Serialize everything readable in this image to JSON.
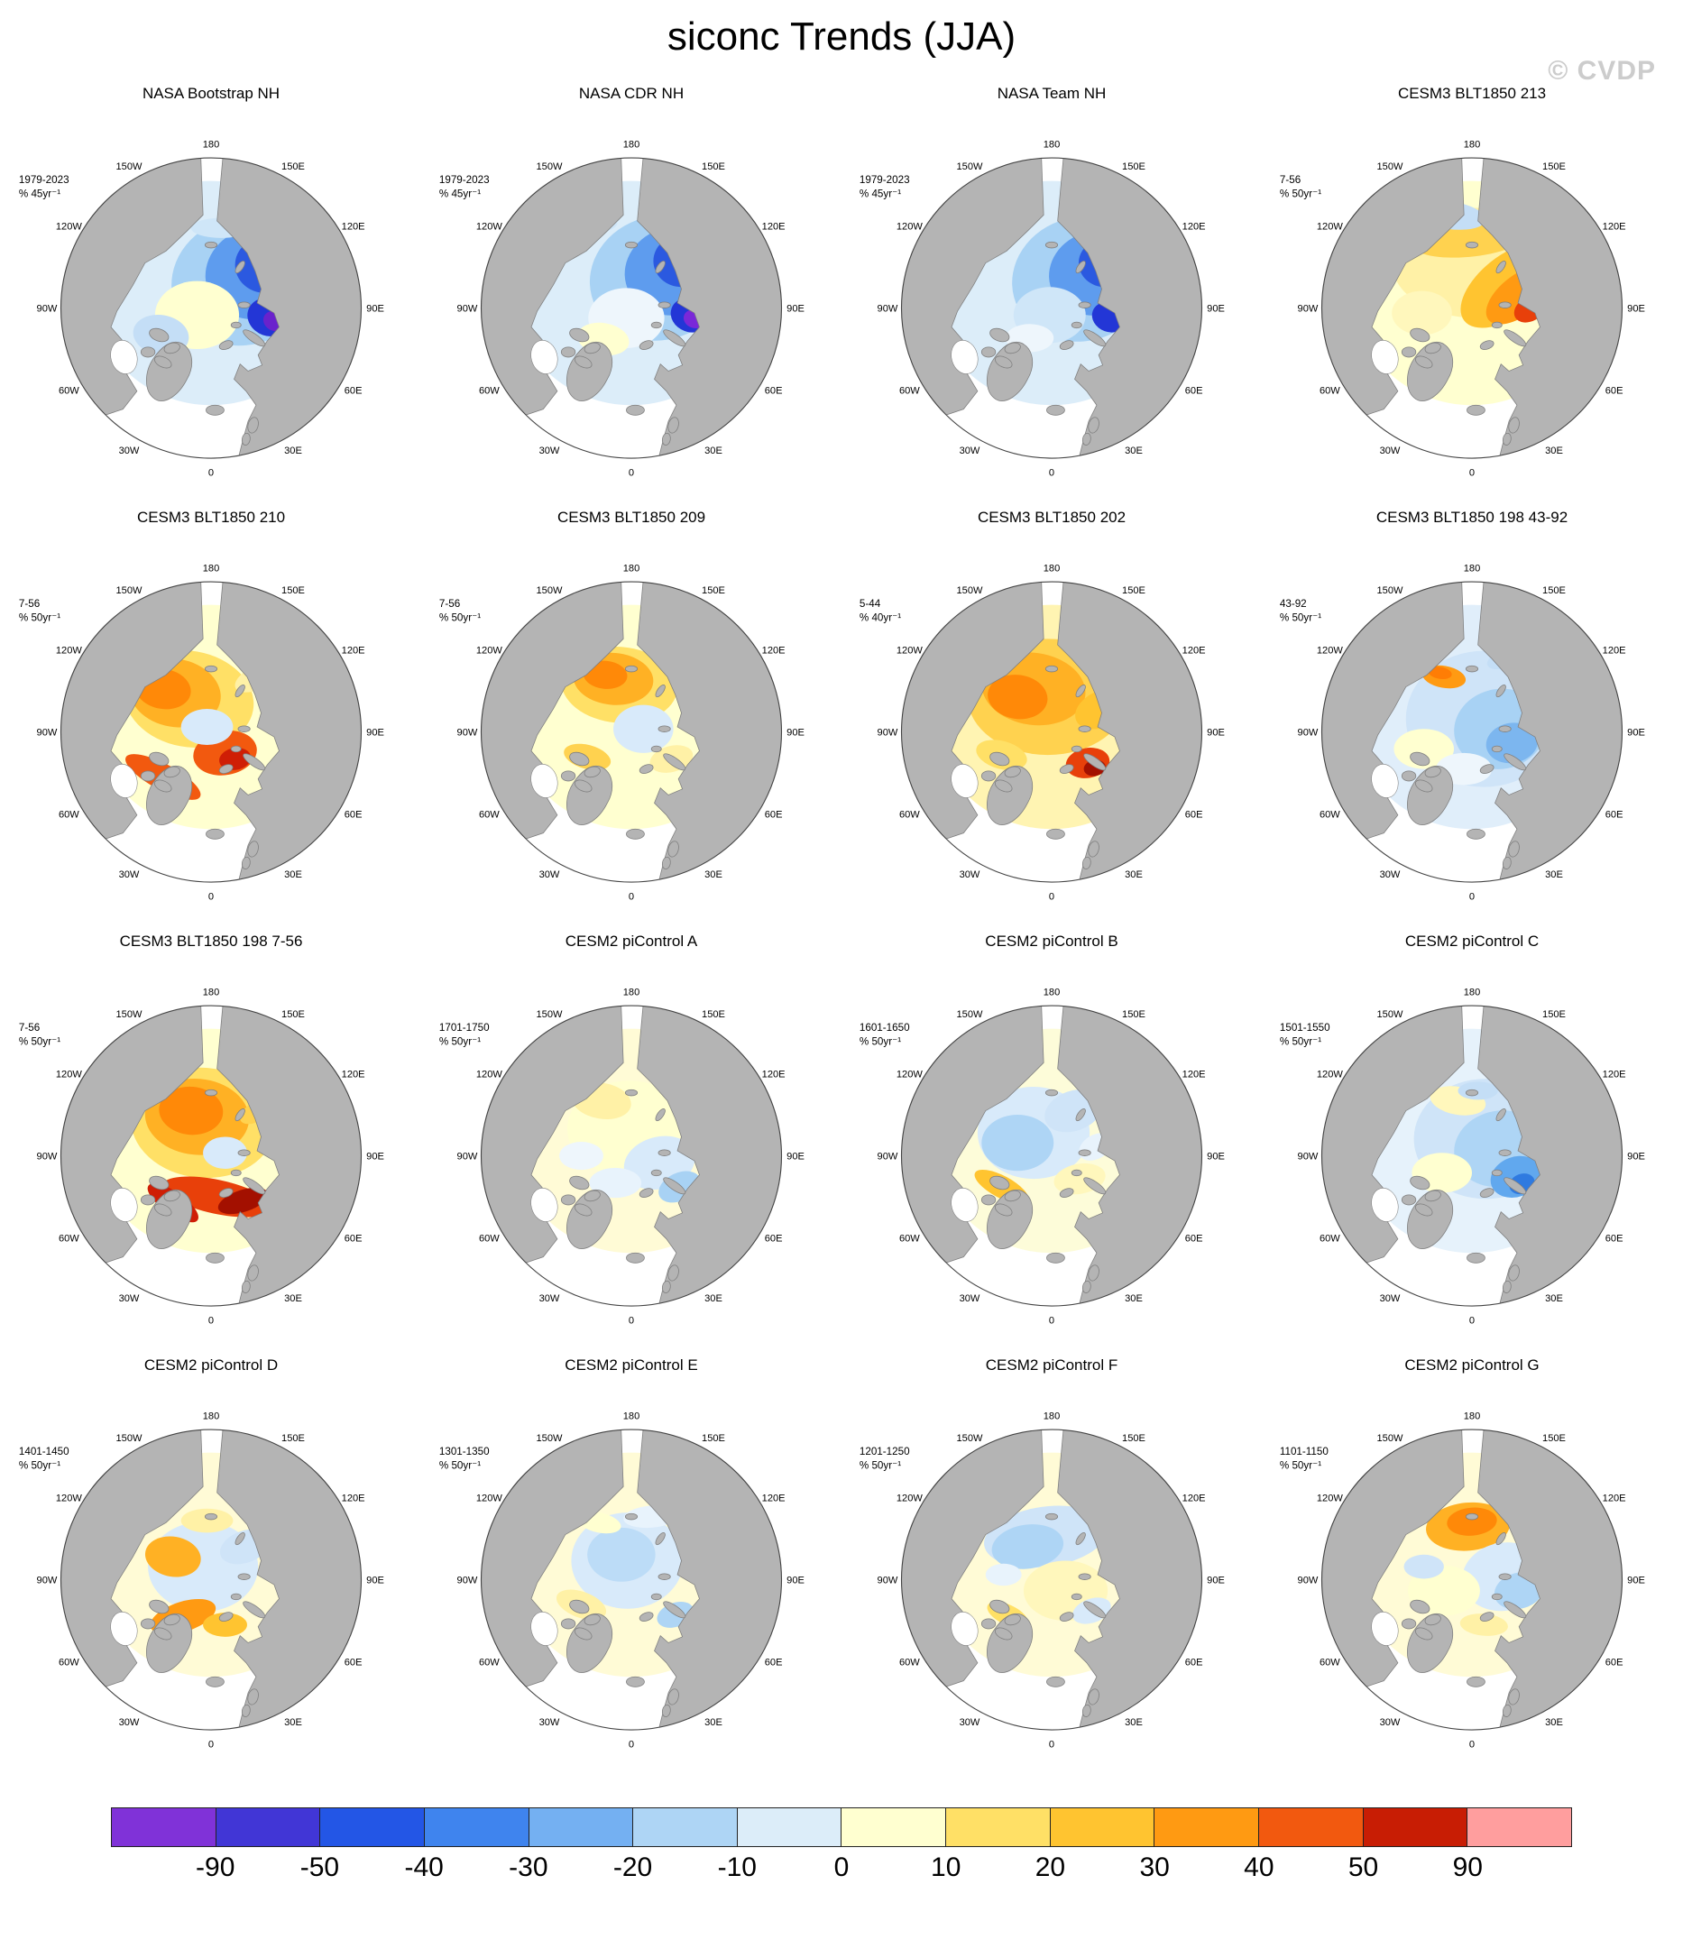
{
  "title": "siconc Trends (JJA)",
  "watermark": "© CVDP",
  "map_labels": [
    "180",
    "150E",
    "120E",
    "90E",
    "60E",
    "30E",
    "0",
    "30W",
    "60W",
    "90W",
    "120W",
    "150W"
  ],
  "chart_data": {
    "type": "heatmap",
    "title": "siconc Trends (JJA)",
    "variable": "sea ice concentration (siconc) trend",
    "season": "JJA",
    "projection": "North polar stereographic, 180 at top, 0 at bottom",
    "colorbar": {
      "units": "% per trend period",
      "levels": [
        -90,
        -50,
        -40,
        -30,
        -20,
        -10,
        0,
        10,
        20,
        30,
        40,
        50,
        90
      ],
      "colors": [
        "#8032d8",
        "#4136d6",
        "#2356e6",
        "#3f84ee",
        "#74b0f2",
        "#aed5f5",
        "#dcedf9",
        "#ffffd0",
        "#ffe066",
        "#ffc430",
        "#ff9a12",
        "#f2590f",
        "#c81d04",
        "#ff9e9e"
      ]
    },
    "panels": [
      {
        "name": "NASA Bootstrap NH",
        "period": "1979-2023",
        "units": "% 45yr⁻¹",
        "summary": "Strong negative trends (-30 to -90%) over the Siberian shelf seas and central Arctic"
      },
      {
        "name": "NASA CDR NH",
        "period": "1979-2023",
        "units": "% 45yr⁻¹",
        "summary": "Strong negative trends similar to Bootstrap, darkest over Kara and East Siberian seas"
      },
      {
        "name": "NASA Team NH",
        "period": "1979-2023",
        "units": "% 45yr⁻¹",
        "summary": "Widespread negative trends, strongest on the Siberian side of the Arctic"
      },
      {
        "name": "CESM3 BLT1850 213",
        "period": "7-56",
        "units": "% 50yr⁻¹",
        "summary": "Mostly weak positive trends with an orange band along the Siberian coast"
      },
      {
        "name": "CESM3 BLT1850 210",
        "period": "7-56",
        "units": "% 50yr⁻¹",
        "summary": "Positive trends with strong increases (30-50%) toward the Canadian side and pole"
      },
      {
        "name": "CESM3 BLT1850 209",
        "period": "7-56",
        "units": "% 50yr⁻¹",
        "summary": "Weak-to-moderate positive trends, orange patch on the Pacific side"
      },
      {
        "name": "CESM3 BLT1850 202",
        "period": "5-44",
        "units": "% 40yr⁻¹",
        "summary": "Moderate positive trends with a dark red maximum in the Kara sector"
      },
      {
        "name": "CESM3 BLT1850 198 43-92",
        "period": "43-92",
        "units": "% 50yr⁻¹",
        "summary": "Mostly weak negative trends with a small orange patch near the pole"
      },
      {
        "name": "CESM3 BLT1850 198 7-56",
        "period": "7-56",
        "units": "% 50yr⁻¹",
        "summary": "Strong positive trends, dark red maxima in the Barents/Kara sector"
      },
      {
        "name": "CESM2 piControl A",
        "period": "1701-1750",
        "units": "% 50yr⁻¹",
        "summary": "Weak mixed trends, pale yellow center with light blue margins"
      },
      {
        "name": "CESM2 piControl B",
        "period": "1601-1650",
        "units": "% 50yr⁻¹",
        "summary": "Weak negative trends on the North American side, weak positive elsewhere"
      },
      {
        "name": "CESM2 piControl C",
        "period": "1501-1550",
        "units": "% 50yr⁻¹",
        "summary": "Weak negative trends with a blue maximum in the Laptev/Kara sector"
      },
      {
        "name": "CESM2 piControl D",
        "period": "1401-1450",
        "units": "% 50yr⁻¹",
        "summary": "Mixed trends, orange patches near the Canadian Archipelago and Greenland"
      },
      {
        "name": "CESM2 piControl E",
        "period": "1301-1350",
        "units": "% 50yr⁻¹",
        "summary": "Weak trends, light blue central Arctic"
      },
      {
        "name": "CESM2 piControl F",
        "period": "1201-1250",
        "units": "% 50yr⁻¹",
        "summary": "Weak trends, light blue on the Pacific side of the pole"
      },
      {
        "name": "CESM2 piControl G",
        "period": "1101-1150",
        "units": "% 50yr⁻¹",
        "summary": "Weak mixed trends with an orange patch on the Siberian side near the pole"
      }
    ]
  },
  "panel_patterns": [
    [
      [
        200,
        190,
        118,
        112,
        0,
        "#dcedf9"
      ],
      [
        232,
        178,
        72,
        64,
        -15,
        "#a8d2f4"
      ],
      [
        246,
        170,
        52,
        46,
        -15,
        "#5e9cee"
      ],
      [
        254,
        162,
        30,
        28,
        0,
        "#2b59e0"
      ],
      [
        258,
        214,
        22,
        19,
        20,
        "#2336d6"
      ],
      [
        264,
        218,
        12,
        10,
        20,
        "#6a22cc"
      ],
      [
        186,
        212,
        42,
        34,
        0,
        "#ffffd0"
      ],
      [
        150,
        232,
        28,
        20,
        10,
        "#c4def6"
      ],
      [
        210,
        125,
        30,
        10,
        0,
        "#cfe6f8"
      ]
    ],
    [
      [
        200,
        190,
        118,
        112,
        0,
        "#dcedf9"
      ],
      [
        228,
        175,
        70,
        62,
        -15,
        "#a8d2f4"
      ],
      [
        243,
        168,
        50,
        44,
        -15,
        "#5e9cee"
      ],
      [
        250,
        158,
        28,
        26,
        0,
        "#2b59e0"
      ],
      [
        259,
        212,
        20,
        17,
        20,
        "#2336d6"
      ],
      [
        263,
        216,
        11,
        9,
        20,
        "#7a28d8"
      ],
      [
        195,
        215,
        38,
        30,
        0,
        "#eef6fc"
      ],
      [
        172,
        236,
        26,
        16,
        10,
        "#ffffd0"
      ],
      [
        160,
        120,
        26,
        10,
        0,
        "#cfe6f8"
      ]
    ],
    [
      [
        200,
        190,
        118,
        112,
        0,
        "#dcedf9"
      ],
      [
        230,
        176,
        70,
        62,
        -15,
        "#a8d2f4"
      ],
      [
        245,
        170,
        48,
        42,
        -15,
        "#5e9cee"
      ],
      [
        253,
        160,
        26,
        24,
        0,
        "#2b59e0"
      ],
      [
        258,
        214,
        18,
        15,
        20,
        "#2336d6"
      ],
      [
        198,
        212,
        36,
        28,
        0,
        "#cfe6f8"
      ],
      [
        178,
        235,
        24,
        14,
        0,
        "#eef6fc"
      ]
    ],
    [
      [
        200,
        190,
        118,
        112,
        0,
        "#ffffd0"
      ],
      [
        205,
        160,
        85,
        55,
        0,
        "#fff1a6"
      ],
      [
        238,
        182,
        58,
        30,
        -38,
        "#ffc430"
      ],
      [
        248,
        192,
        40,
        20,
        -38,
        "#ff9a12"
      ],
      [
        258,
        206,
        17,
        12,
        -30,
        "#e8400a"
      ],
      [
        196,
        138,
        55,
        16,
        -5,
        "#ffd24f"
      ],
      [
        176,
        112,
        38,
        14,
        8,
        "#c4def6"
      ],
      [
        248,
        122,
        28,
        12,
        -20,
        "#dcedf9"
      ],
      [
        150,
        210,
        30,
        22,
        0,
        "#fff7bc"
      ]
    ],
    [
      [
        200,
        190,
        118,
        112,
        0,
        "#ffffd0"
      ],
      [
        178,
        172,
        65,
        48,
        10,
        "#ffe066"
      ],
      [
        164,
        166,
        46,
        34,
        10,
        "#ffb124"
      ],
      [
        152,
        162,
        28,
        20,
        10,
        "#ff8908"
      ],
      [
        214,
        226,
        32,
        22,
        -10,
        "#f2590f"
      ],
      [
        224,
        232,
        16,
        11,
        -10,
        "#cf1e05"
      ],
      [
        152,
        250,
        42,
        13,
        28,
        "#f2590f"
      ],
      [
        196,
        200,
        26,
        18,
        0,
        "#d8eafa"
      ],
      [
        248,
        150,
        26,
        12,
        -25,
        "#fff1a6"
      ]
    ],
    [
      [
        200,
        190,
        118,
        112,
        0,
        "#ffffd0"
      ],
      [
        188,
        158,
        58,
        38,
        5,
        "#ffe066"
      ],
      [
        182,
        152,
        40,
        26,
        5,
        "#ffb124"
      ],
      [
        174,
        148,
        22,
        14,
        5,
        "#ff8908"
      ],
      [
        212,
        202,
        30,
        24,
        0,
        "#d8eafa"
      ],
      [
        240,
        232,
        22,
        13,
        -15,
        "#fff1a6"
      ],
      [
        156,
        230,
        24,
        12,
        15,
        "#ffd24f"
      ]
    ],
    [
      [
        200,
        190,
        118,
        112,
        0,
        "#fff4b2"
      ],
      [
        196,
        170,
        80,
        58,
        0,
        "#ffd24f"
      ],
      [
        182,
        162,
        52,
        36,
        8,
        "#ffb124"
      ],
      [
        166,
        170,
        30,
        22,
        8,
        "#ff8908"
      ],
      [
        236,
        236,
        22,
        15,
        -10,
        "#e8400a"
      ],
      [
        243,
        241,
        11,
        8,
        -10,
        "#a31000"
      ],
      [
        250,
        182,
        28,
        18,
        -25,
        "#ffc430"
      ],
      [
        150,
        228,
        26,
        14,
        15,
        "#ffe066"
      ]
    ],
    [
      [
        200,
        190,
        118,
        112,
        0,
        "#e0eefa"
      ],
      [
        212,
        192,
        78,
        68,
        0,
        "#cfe4f8"
      ],
      [
        228,
        202,
        46,
        40,
        -10,
        "#a8d2f4"
      ],
      [
        240,
        216,
        26,
        20,
        -10,
        "#7cb6ef"
      ],
      [
        172,
        150,
        22,
        11,
        10,
        "#ff9a12"
      ],
      [
        168,
        146,
        12,
        6,
        10,
        "#ff7d05"
      ],
      [
        152,
        222,
        30,
        20,
        0,
        "#ffffd0"
      ],
      [
        192,
        242,
        28,
        16,
        0,
        "#eef6fc"
      ],
      [
        238,
        130,
        24,
        10,
        -20,
        "#c4def6"
      ]
    ],
    [
      [
        200,
        190,
        118,
        112,
        0,
        "#ffffd0"
      ],
      [
        192,
        172,
        72,
        55,
        5,
        "#ffe066"
      ],
      [
        186,
        166,
        52,
        38,
        5,
        "#ffb124"
      ],
      [
        180,
        160,
        32,
        24,
        5,
        "#ff8908"
      ],
      [
        206,
        246,
        56,
        17,
        12,
        "#e8400a"
      ],
      [
        232,
        250,
        26,
        11,
        -18,
        "#a31000"
      ],
      [
        162,
        252,
        30,
        11,
        35,
        "#cf1e05"
      ],
      [
        214,
        202,
        22,
        16,
        0,
        "#d8eafa"
      ],
      [
        247,
        160,
        20,
        10,
        -30,
        "#ffd24f"
      ]
    ],
    [
      [
        200,
        190,
        118,
        112,
        0,
        "#fffbd6"
      ],
      [
        198,
        178,
        62,
        48,
        0,
        "#ffffd0"
      ],
      [
        228,
        212,
        36,
        26,
        -15,
        "#d8eafa"
      ],
      [
        248,
        236,
        22,
        14,
        -25,
        "#a8d2f4"
      ],
      [
        170,
        150,
        30,
        18,
        10,
        "#fff1a6"
      ],
      [
        184,
        232,
        26,
        15,
        0,
        "#e8f3fc"
      ],
      [
        150,
        205,
        22,
        14,
        0,
        "#eef6fc"
      ]
    ],
    [
      [
        200,
        190,
        118,
        112,
        0,
        "#fdfcd9"
      ],
      [
        182,
        182,
        56,
        46,
        0,
        "#d8eafa"
      ],
      [
        166,
        192,
        36,
        28,
        0,
        "#aed5f5"
      ],
      [
        222,
        160,
        30,
        20,
        -20,
        "#cfe4f8"
      ],
      [
        150,
        236,
        30,
        11,
        28,
        "#ffc430"
      ],
      [
        228,
        228,
        26,
        15,
        -10,
        "#fff7bc"
      ],
      [
        244,
        196,
        18,
        12,
        -30,
        "#e8f3fc"
      ]
    ],
    [
      [
        200,
        190,
        118,
        112,
        0,
        "#e6f2fb"
      ],
      [
        214,
        188,
        72,
        60,
        0,
        "#cfe4f8"
      ],
      [
        228,
        198,
        46,
        38,
        -10,
        "#aed5f5"
      ],
      [
        244,
        226,
        26,
        20,
        -20,
        "#61a8ee"
      ],
      [
        250,
        233,
        13,
        10,
        -20,
        "#2f7ae0"
      ],
      [
        170,
        222,
        30,
        20,
        0,
        "#ffffd0"
      ],
      [
        186,
        150,
        28,
        14,
        10,
        "#fff7bc"
      ],
      [
        206,
        140,
        20,
        9,
        0,
        "#c4def6"
      ]
    ],
    [
      [
        200,
        190,
        118,
        112,
        0,
        "#fffbd6"
      ],
      [
        192,
        192,
        55,
        45,
        0,
        "#d8eafa"
      ],
      [
        162,
        182,
        28,
        20,
        10,
        "#ffb124"
      ],
      [
        172,
        242,
        34,
        15,
        -18,
        "#ff9a12"
      ],
      [
        214,
        250,
        22,
        12,
        0,
        "#ffc430"
      ],
      [
        234,
        172,
        26,
        16,
        -20,
        "#cfe4f8"
      ],
      [
        196,
        146,
        26,
        12,
        0,
        "#fff1a6"
      ]
    ],
    [
      [
        200,
        190,
        118,
        112,
        0,
        "#fffbd6"
      ],
      [
        196,
        186,
        56,
        48,
        0,
        "#d8eafa"
      ],
      [
        190,
        180,
        34,
        27,
        0,
        "#bcdcf7"
      ],
      [
        244,
        240,
        19,
        12,
        -20,
        "#aed5f5"
      ],
      [
        150,
        230,
        26,
        13,
        20,
        "#fff1a6"
      ],
      [
        220,
        142,
        28,
        11,
        -5,
        "#e8f3fc"
      ],
      [
        168,
        148,
        22,
        10,
        12,
        "#ffffd0"
      ]
    ],
    [
      [
        200,
        190,
        118,
        112,
        0,
        "#fffbd6"
      ],
      [
        194,
        162,
        62,
        30,
        -8,
        "#cfe4f8"
      ],
      [
        176,
        172,
        36,
        22,
        -8,
        "#aed5f5"
      ],
      [
        214,
        216,
        42,
        30,
        0,
        "#fff7bc"
      ],
      [
        240,
        236,
        20,
        12,
        -20,
        "#d8eafa"
      ],
      [
        156,
        240,
        22,
        10,
        25,
        "#ffe066"
      ],
      [
        152,
        200,
        18,
        11,
        0,
        "#e8f3fc"
      ]
    ],
    [
      [
        200,
        190,
        118,
        112,
        0,
        "#fffbd6"
      ],
      [
        196,
        152,
        42,
        24,
        -5,
        "#ffb124"
      ],
      [
        200,
        147,
        25,
        14,
        -5,
        "#ff8908"
      ],
      [
        232,
        202,
        42,
        34,
        -10,
        "#d8eafa"
      ],
      [
        247,
        216,
        25,
        18,
        -15,
        "#aed5f5"
      ],
      [
        172,
        216,
        36,
        25,
        0,
        "#ffffd0"
      ],
      [
        152,
        192,
        20,
        12,
        0,
        "#cfe4f8"
      ],
      [
        212,
        250,
        24,
        11,
        5,
        "#fff1a6"
      ]
    ]
  ]
}
